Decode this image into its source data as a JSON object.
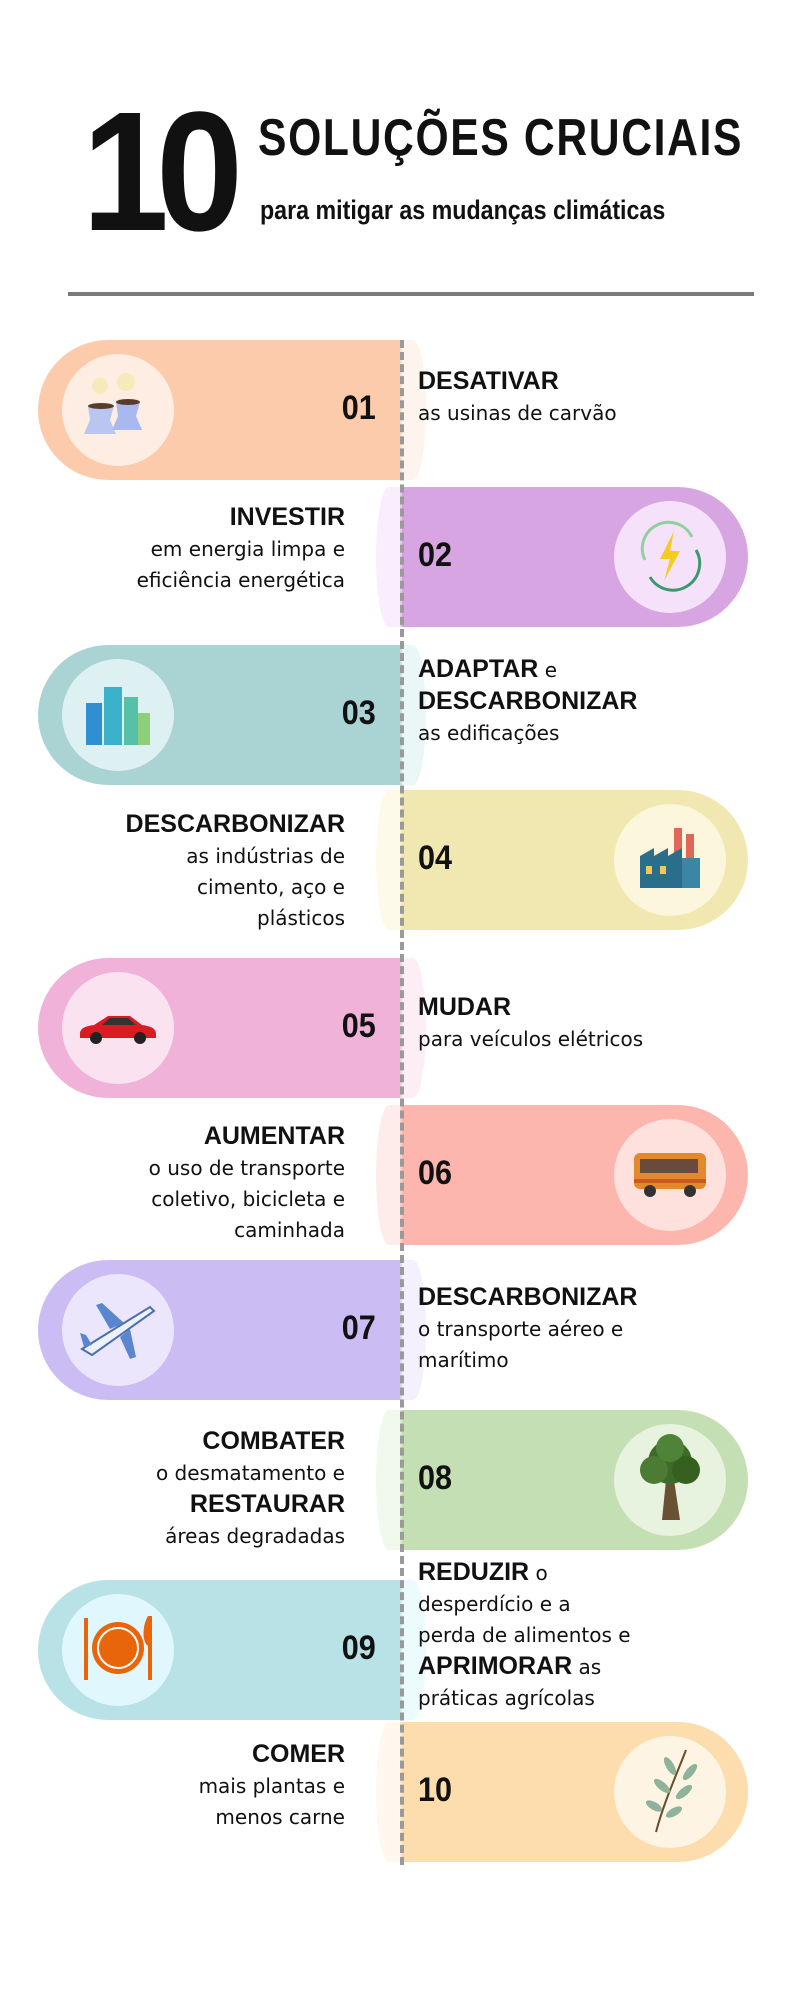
{
  "header": {
    "number": "10",
    "title": "SOLUÇÕES CRUCIAIS",
    "subtitle": "para mitigar as mudanças climáticas"
  },
  "items": [
    {
      "num": "01",
      "side": "left",
      "color": "#fccbab",
      "circle": "#feede3",
      "icon": "cooling-towers-icon",
      "lines": [
        [
          {
            "b": true,
            "t": "DESATIVAR"
          }
        ],
        [
          {
            "t": "as usinas de carvão"
          }
        ]
      ]
    },
    {
      "num": "02",
      "side": "right",
      "color": "#d7a6e2",
      "circle": "#f6e1fb",
      "icon": "renewable-energy-icon",
      "lines": [
        [
          {
            "b": true,
            "t": "INVESTIR"
          }
        ],
        [
          {
            "t": "em energia limpa e"
          }
        ],
        [
          {
            "t": "eficiência energética"
          }
        ]
      ]
    },
    {
      "num": "03",
      "side": "left",
      "color": "#aad3d4",
      "circle": "#ddf1f2",
      "icon": "buildings-icon",
      "lines": [
        [
          {
            "b": true,
            "t": "ADAPTAR"
          },
          {
            "t": " e"
          }
        ],
        [
          {
            "b": true,
            "t": "DESCARBONIZAR"
          }
        ],
        [
          {
            "t": "as edificações"
          }
        ]
      ]
    },
    {
      "num": "04",
      "side": "right",
      "color": "#f0e8b0",
      "circle": "#fbf6dc",
      "icon": "factory-icon",
      "lines": [
        [
          {
            "b": true,
            "t": "DESCARBONIZAR"
          }
        ],
        [
          {
            "t": "as indústrias de"
          }
        ],
        [
          {
            "t": "cimento, aço e"
          }
        ],
        [
          {
            "t": "plásticos"
          }
        ]
      ]
    },
    {
      "num": "05",
      "side": "left",
      "color": "#f1b2d9",
      "circle": "#fbe2f0",
      "icon": "electric-car-icon",
      "lines": [
        [
          {
            "b": true,
            "t": "MUDAR"
          }
        ],
        [
          {
            "t": "para veículos elétricos"
          }
        ]
      ]
    },
    {
      "num": "06",
      "side": "right",
      "color": "#fdb6ad",
      "circle": "#fee0dc",
      "icon": "bus-icon",
      "lines": [
        [
          {
            "b": true,
            "t": "AUMENTAR"
          }
        ],
        [
          {
            "t": "o uso de transporte"
          }
        ],
        [
          {
            "t": "coletivo, bicicleta e"
          }
        ],
        [
          {
            "t": "caminhada"
          }
        ]
      ]
    },
    {
      "num": "07",
      "side": "left",
      "color": "#cbbdf4",
      "circle": "#ece6fd",
      "icon": "airplane-icon",
      "lines": [
        [
          {
            "b": true,
            "t": "DESCARBONIZAR"
          }
        ],
        [
          {
            "t": "o transporte aéreo e"
          }
        ],
        [
          {
            "t": "marítimo"
          }
        ]
      ]
    },
    {
      "num": "08",
      "side": "right",
      "color": "#c5dfb4",
      "circle": "#e8f3df",
      "icon": "tree-icon",
      "lines": [
        [
          {
            "b": true,
            "t": "COMBATER"
          }
        ],
        [
          {
            "t": "o desmatamento e"
          }
        ],
        [
          {
            "b": true,
            "t": "RESTAURAR"
          }
        ],
        [
          {
            "t": "áreas degradadas"
          }
        ]
      ]
    },
    {
      "num": "09",
      "side": "left",
      "color": "#b8e2e6",
      "circle": "#e0f8fd",
      "icon": "plate-cutlery-icon",
      "lines": [
        [
          {
            "b": true,
            "t": "REDUZIR"
          },
          {
            "t": " o"
          }
        ],
        [
          {
            "t": "desperdício e a"
          }
        ],
        [
          {
            "t": "perda de alimentos e"
          }
        ],
        [
          {
            "b": true,
            "t": "APRIMORAR"
          },
          {
            "t": " as"
          }
        ],
        [
          {
            "t": "práticas agrícolas"
          }
        ]
      ]
    },
    {
      "num": "10",
      "side": "right",
      "color": "#fddcae",
      "circle": "#fef4e3",
      "icon": "plant-sprig-icon",
      "lines": [
        [
          {
            "b": true,
            "t": "COMER"
          }
        ],
        [
          {
            "t": "mais plantas e"
          }
        ],
        [
          {
            "t": "menos carne"
          }
        ]
      ]
    }
  ]
}
